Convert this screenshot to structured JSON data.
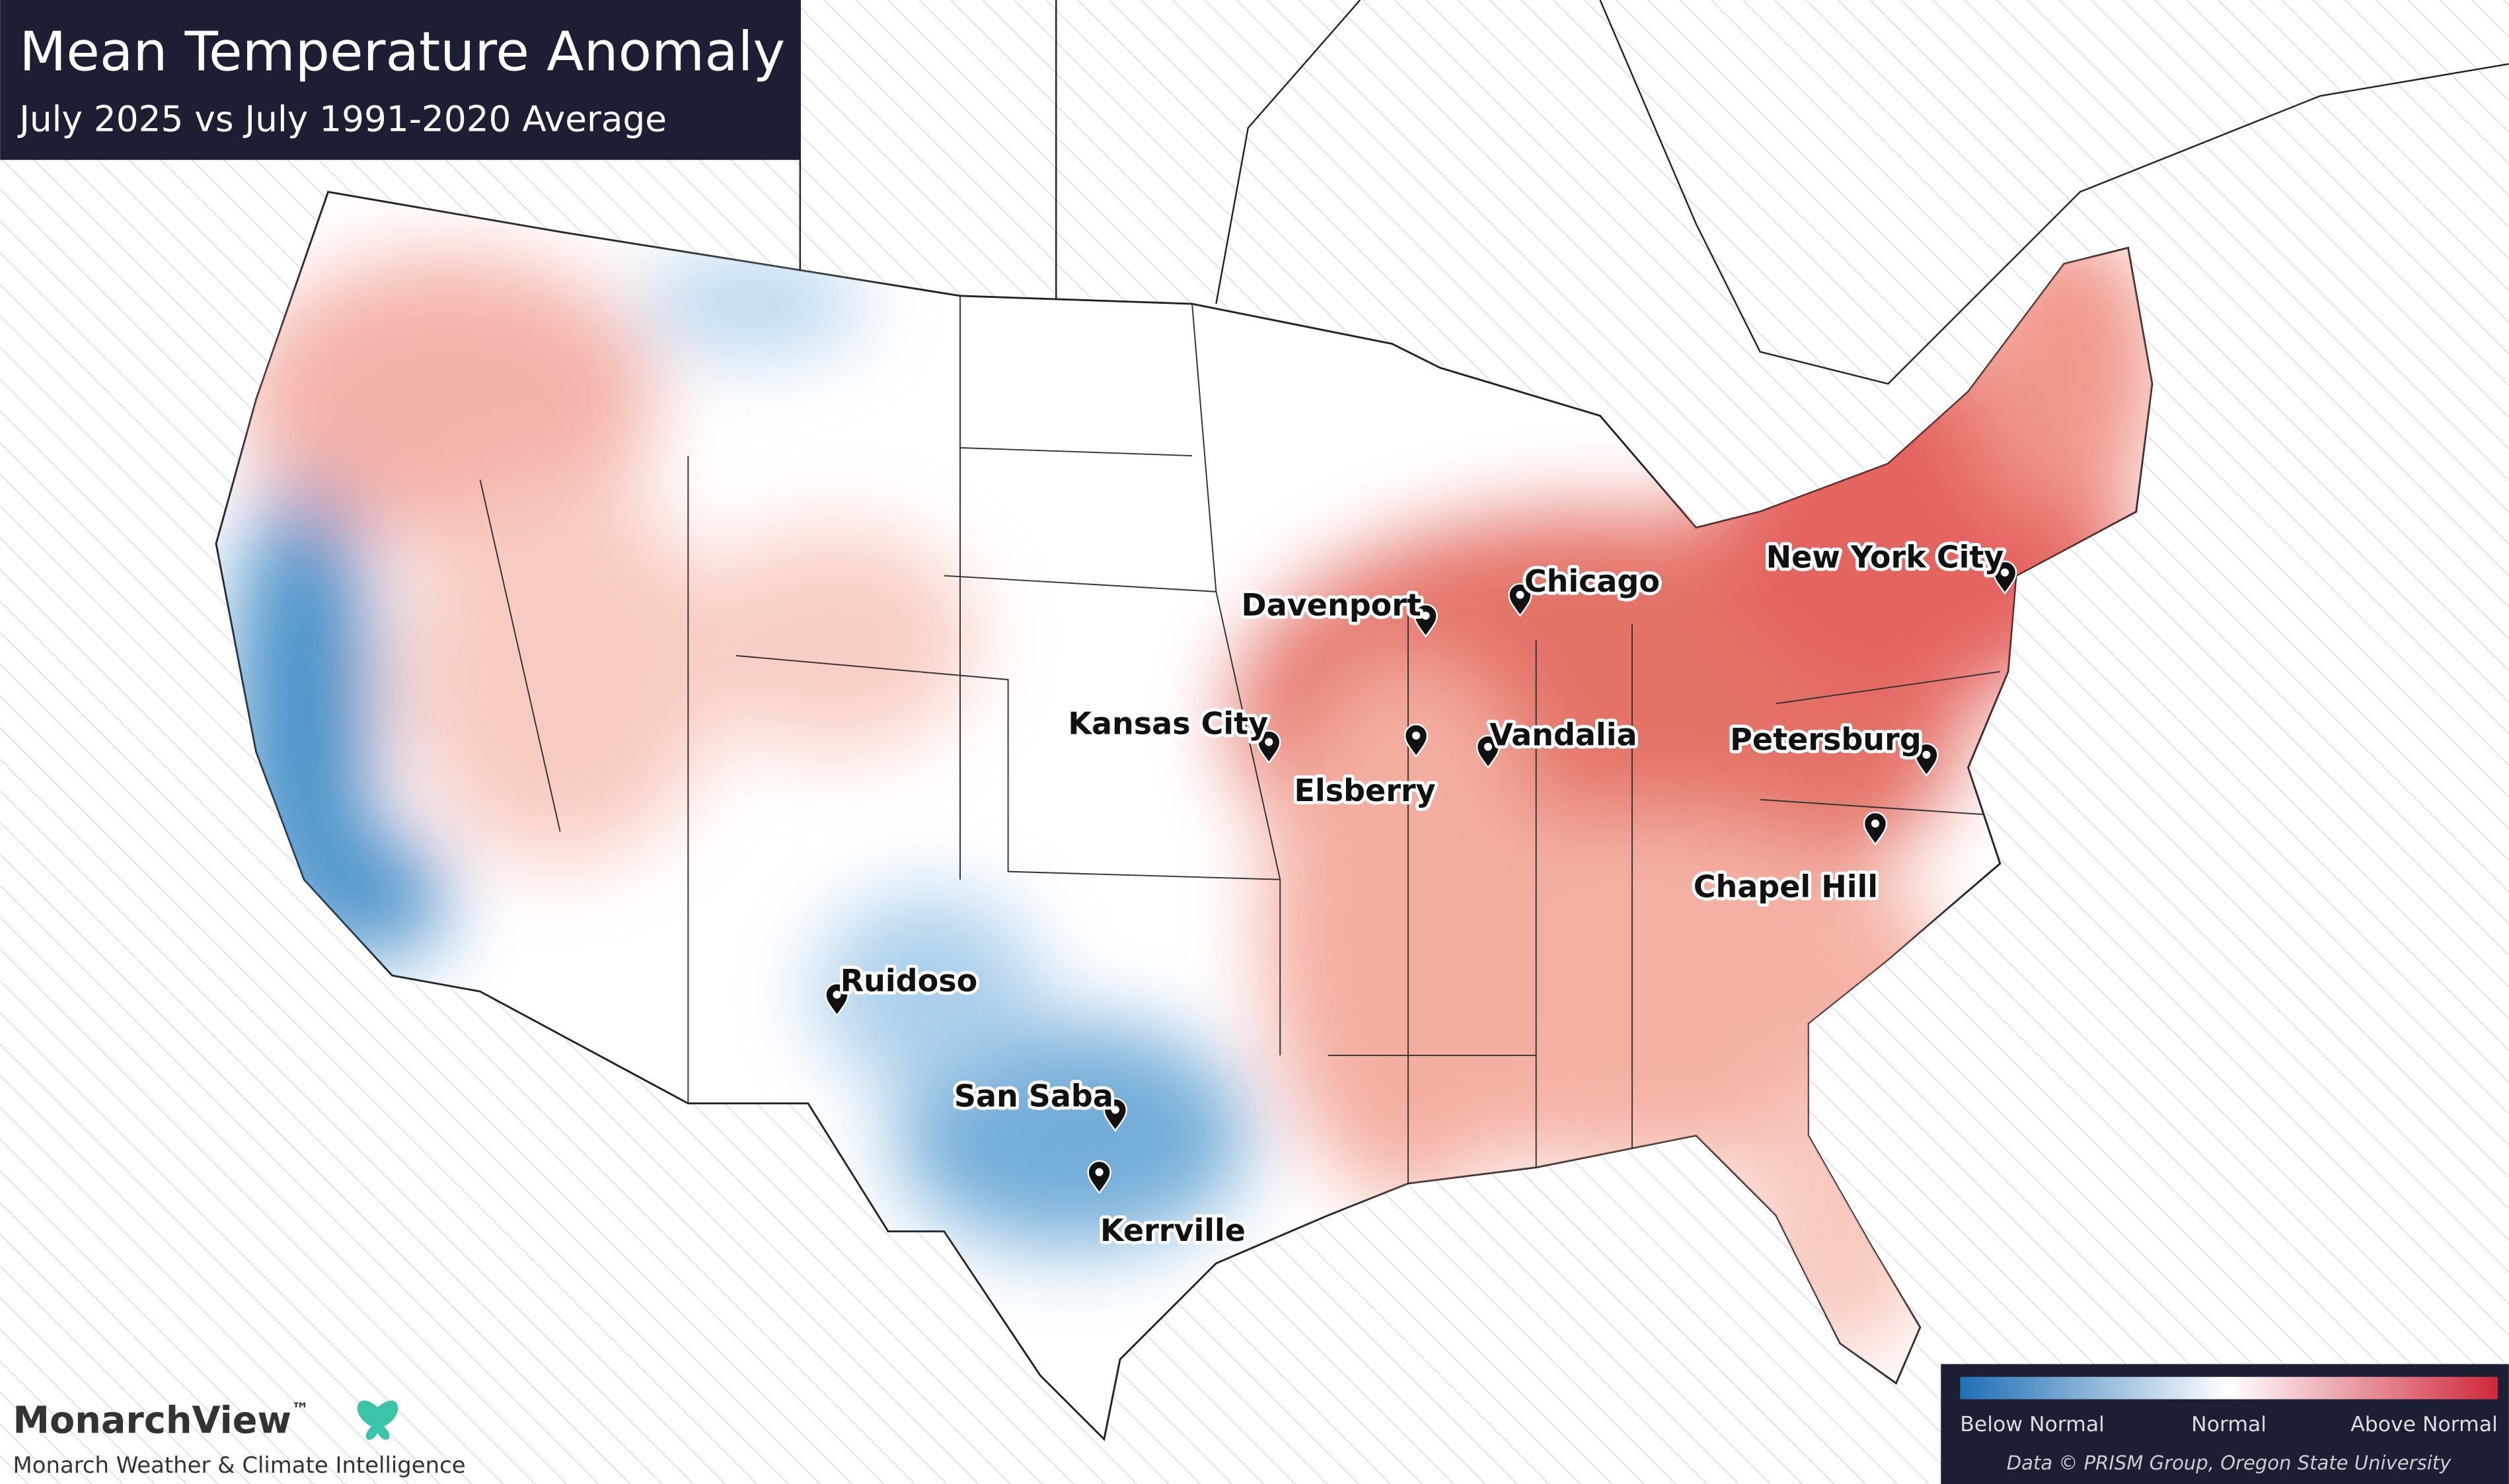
{
  "header": {
    "title": "Mean Temperature Anomaly",
    "subtitle": "July 2025 vs July 1991-2020 Average"
  },
  "cities": [
    "Chicago",
    "Davenport",
    "New York City",
    "Kansas City",
    "Vandalia",
    "Elsberry",
    "Petersburg",
    "Chapel Hill",
    "Ruidoso",
    "San Saba",
    "Kerrville"
  ],
  "legend": {
    "low": "Below Normal",
    "mid": "Normal",
    "high": "Above Normal",
    "credit": "Data © PRISM Group, Oregon State University"
  },
  "brand": {
    "name": "MonarchView",
    "mark": "™",
    "tagline": "Monarch Weather & Climate Intelligence"
  }
}
